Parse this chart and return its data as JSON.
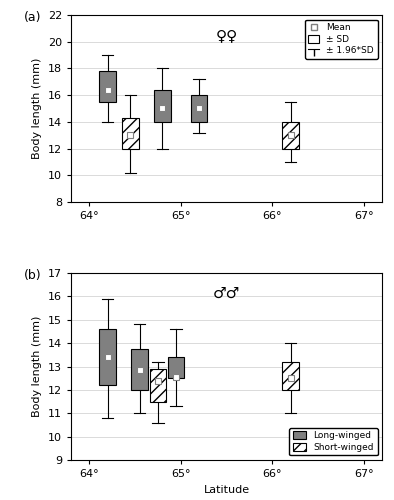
{
  "panel_a": {
    "title_symbol": "♀♀",
    "ylabel": "Body length (mm)",
    "ylim": [
      8,
      22
    ],
    "yticks": [
      8,
      10,
      12,
      14,
      16,
      18,
      20,
      22
    ],
    "xlim": [
      63.8,
      67.2
    ],
    "xticks": [
      64,
      65,
      66,
      67
    ],
    "xticklabels": [
      "64°",
      "65°",
      "66°",
      "67°"
    ],
    "boxes": [
      {
        "x": 64.2,
        "type": "long",
        "whisker_lo": 14.0,
        "q1": 15.5,
        "mean": 16.4,
        "q3": 17.8,
        "whisker_hi": 19.0
      },
      {
        "x": 64.45,
        "type": "short",
        "whisker_lo": 10.2,
        "q1": 12.0,
        "mean": 13.0,
        "q3": 14.3,
        "whisker_hi": 16.0
      },
      {
        "x": 64.8,
        "type": "long",
        "whisker_lo": 12.0,
        "q1": 14.0,
        "mean": 15.0,
        "q3": 16.4,
        "whisker_hi": 18.0
      },
      {
        "x": 65.2,
        "type": "long",
        "whisker_lo": 13.2,
        "q1": 14.0,
        "mean": 15.0,
        "q3": 16.0,
        "whisker_hi": 17.2
      },
      {
        "x": 66.2,
        "type": "short",
        "whisker_lo": 11.0,
        "q1": 12.0,
        "mean": 13.0,
        "q3": 14.0,
        "whisker_hi": 15.5
      }
    ]
  },
  "panel_b": {
    "title_symbol": "♂♂",
    "ylabel": "Body length (mm)",
    "xlabel": "Latitude",
    "ylim": [
      9,
      17
    ],
    "yticks": [
      9,
      10,
      11,
      12,
      13,
      14,
      15,
      16,
      17
    ],
    "xlim": [
      63.8,
      67.2
    ],
    "xticks": [
      64,
      65,
      66,
      67
    ],
    "xticklabels": [
      "64°",
      "65°",
      "66°",
      "67°"
    ],
    "boxes": [
      {
        "x": 64.2,
        "type": "long",
        "whisker_lo": 10.8,
        "q1": 12.2,
        "mean": 13.4,
        "q3": 14.6,
        "whisker_hi": 15.9
      },
      {
        "x": 64.55,
        "type": "long",
        "whisker_lo": 11.0,
        "q1": 12.0,
        "mean": 12.85,
        "q3": 13.75,
        "whisker_hi": 14.8
      },
      {
        "x": 64.75,
        "type": "short",
        "whisker_lo": 10.6,
        "q1": 11.5,
        "mean": 12.4,
        "q3": 12.9,
        "whisker_hi": 13.2
      },
      {
        "x": 64.95,
        "type": "long",
        "whisker_lo": 11.3,
        "q1": 12.5,
        "mean": 12.55,
        "q3": 13.4,
        "whisker_hi": 14.6
      },
      {
        "x": 66.2,
        "type": "short",
        "whisker_lo": 11.0,
        "q1": 12.0,
        "mean": 12.5,
        "q3": 13.2,
        "whisker_hi": 14.0
      }
    ]
  },
  "long_color": "#808080",
  "short_hatch": "///",
  "box_width": 0.18,
  "background_color": "#ffffff",
  "grid_color": "#cccccc"
}
